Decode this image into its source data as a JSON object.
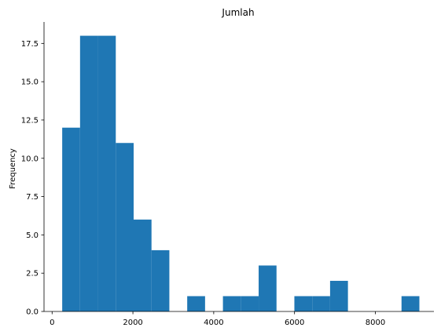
{
  "chart_data": {
    "type": "bar",
    "title": "Jumlah",
    "xlabel": "",
    "ylabel": "Frequency",
    "bar_color": "#1f77b4",
    "xlim": [
      -200,
      9450
    ],
    "ylim": [
      0,
      18.9
    ],
    "x_ticks": [
      0,
      2000,
      4000,
      6000,
      8000
    ],
    "x_tick_labels": [
      "0",
      "2000",
      "4000",
      "6000",
      "8000"
    ],
    "y_ticks": [
      0,
      2.5,
      5,
      7.5,
      10,
      12.5,
      15,
      17.5
    ],
    "y_tick_labels": [
      "0.0",
      "2.5",
      "5.0",
      "7.5",
      "10.0",
      "12.5",
      "15.0",
      "17.5"
    ],
    "bins": [
      {
        "x0": 250,
        "x1": 692,
        "count": 12
      },
      {
        "x0": 692,
        "x1": 1134,
        "count": 18
      },
      {
        "x0": 1134,
        "x1": 1576,
        "count": 18
      },
      {
        "x0": 1576,
        "x1": 2018,
        "count": 11
      },
      {
        "x0": 2018,
        "x1": 2460,
        "count": 6
      },
      {
        "x0": 2460,
        "x1": 2902,
        "count": 4
      },
      {
        "x0": 2902,
        "x1": 3344,
        "count": 0
      },
      {
        "x0": 3344,
        "x1": 3786,
        "count": 1
      },
      {
        "x0": 3786,
        "x1": 4228,
        "count": 0
      },
      {
        "x0": 4228,
        "x1": 4670,
        "count": 1
      },
      {
        "x0": 4670,
        "x1": 5112,
        "count": 1
      },
      {
        "x0": 5112,
        "x1": 5554,
        "count": 3
      },
      {
        "x0": 5554,
        "x1": 5996,
        "count": 0
      },
      {
        "x0": 5996,
        "x1": 6438,
        "count": 1
      },
      {
        "x0": 6438,
        "x1": 6880,
        "count": 1
      },
      {
        "x0": 6880,
        "x1": 7322,
        "count": 2
      },
      {
        "x0": 7322,
        "x1": 7764,
        "count": 0
      },
      {
        "x0": 7764,
        "x1": 8206,
        "count": 0
      },
      {
        "x0": 8206,
        "x1": 8648,
        "count": 0
      },
      {
        "x0": 8648,
        "x1": 9090,
        "count": 1
      }
    ],
    "spines": {
      "top": false,
      "right": false,
      "left": true,
      "bottom": true
    }
  }
}
